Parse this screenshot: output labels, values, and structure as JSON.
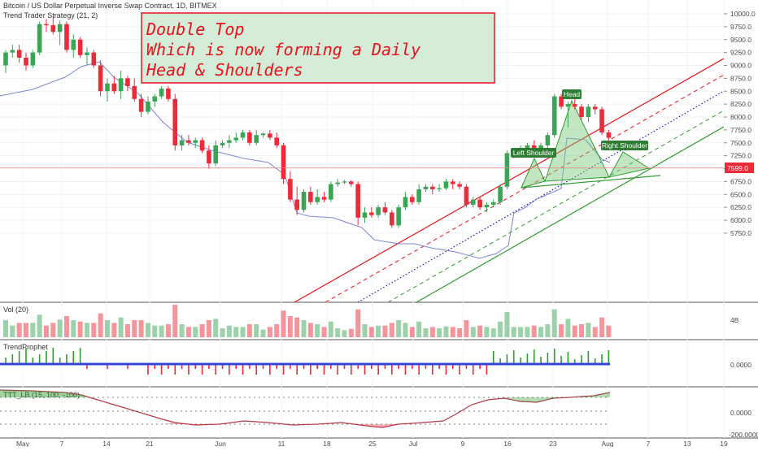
{
  "header": {
    "title": "Bitcoin / US Dollar Perpetual Inverse Swap Contract, 1D, BITMEX",
    "indicator": "Trend Trader Strategy (21, 2)"
  },
  "panels": {
    "volume_label": "Vol (20)",
    "volume_axis_label": "4B",
    "trendprophet_label": "TrendProphet",
    "trendprophet_axis_label": "0.0000",
    "ttt_label": "TTT_LB (15, 100, -100)",
    "ttt_axis_label": "0.0000",
    "ttt_axis_bottom": "-200.0000"
  },
  "annotation": {
    "line1": "Double Top",
    "line2": "Which is now forming a Daily",
    "line3": "Head & Shoulders"
  },
  "pattern_labels": {
    "head": "Head",
    "left_shoulder": "Left Shoulder",
    "right_shoulder": "Right Shoulder"
  },
  "price_axis": {
    "ticks": [
      "10000.0",
      "9750.0",
      "9500.0",
      "9250.0",
      "9000.0",
      "8750.0",
      "8500.0",
      "8250.0",
      "8000.0",
      "7750.0",
      "7500.0",
      "7250.0",
      "7000.0",
      "6750.0",
      "6500.0",
      "6250.0",
      "6000.0",
      "5750.0"
    ],
    "current_price": "7599.0"
  },
  "date_axis": {
    "labels": [
      "May",
      "7",
      "14",
      "21",
      "Jun",
      "11",
      "18",
      "25",
      "Jul",
      "9",
      "16",
      "23",
      "Aug",
      "7",
      "13",
      "19"
    ]
  },
  "colors": {
    "up": "#3aa655",
    "down": "#ee2a38",
    "channel_red": "#e8121b",
    "channel_green": "#2e9e2e",
    "channel_blue": "#1a1aa8",
    "trend_line": "#7b86d4",
    "annotation_bg": "#d4ecd8"
  },
  "chart_data": {
    "type": "candlestick",
    "title": "Bitcoin / US Dollar Perpetual Inverse Swap Contract, 1D, BITMEX",
    "ylim": [
      5500,
      10125
    ],
    "candles": [
      {
        "o": 9000,
        "h": 9300,
        "l": 8850,
        "c": 9250
      },
      {
        "o": 9250,
        "h": 9400,
        "l": 9150,
        "c": 9300
      },
      {
        "o": 9300,
        "h": 9400,
        "l": 9050,
        "c": 9150
      },
      {
        "o": 9150,
        "h": 9250,
        "l": 8900,
        "c": 9000
      },
      {
        "o": 9000,
        "h": 9300,
        "l": 8950,
        "c": 9250
      },
      {
        "o": 9250,
        "h": 9850,
        "l": 9200,
        "c": 9800
      },
      {
        "o": 9800,
        "h": 9900,
        "l": 9650,
        "c": 9780
      },
      {
        "o": 9780,
        "h": 9950,
        "l": 9600,
        "c": 9650
      },
      {
        "o": 9650,
        "h": 9870,
        "l": 9400,
        "c": 9800
      },
      {
        "o": 9800,
        "h": 9850,
        "l": 9250,
        "c": 9300
      },
      {
        "o": 9300,
        "h": 9600,
        "l": 9150,
        "c": 9500
      },
      {
        "o": 9500,
        "h": 9550,
        "l": 9150,
        "c": 9200
      },
      {
        "o": 9200,
        "h": 9350,
        "l": 9000,
        "c": 9250
      },
      {
        "o": 9250,
        "h": 9300,
        "l": 8950,
        "c": 9000
      },
      {
        "o": 9000,
        "h": 9100,
        "l": 8400,
        "c": 8500
      },
      {
        "o": 8500,
        "h": 8750,
        "l": 8300,
        "c": 8650
      },
      {
        "o": 8650,
        "h": 8800,
        "l": 8450,
        "c": 8500
      },
      {
        "o": 8500,
        "h": 8900,
        "l": 8350,
        "c": 8750
      },
      {
        "o": 8750,
        "h": 8800,
        "l": 8500,
        "c": 8600
      },
      {
        "o": 8600,
        "h": 8750,
        "l": 8300,
        "c": 8350
      },
      {
        "o": 8350,
        "h": 8450,
        "l": 8000,
        "c": 8100
      },
      {
        "o": 8100,
        "h": 8400,
        "l": 8050,
        "c": 8300
      },
      {
        "o": 8300,
        "h": 8450,
        "l": 8200,
        "c": 8400
      },
      {
        "o": 8400,
        "h": 8600,
        "l": 8350,
        "c": 8550
      },
      {
        "o": 8550,
        "h": 8600,
        "l": 8300,
        "c": 8350
      },
      {
        "o": 8350,
        "h": 8450,
        "l": 7350,
        "c": 7450
      },
      {
        "o": 7450,
        "h": 7650,
        "l": 7350,
        "c": 7550
      },
      {
        "o": 7550,
        "h": 7650,
        "l": 7450,
        "c": 7500
      },
      {
        "o": 7500,
        "h": 7600,
        "l": 7400,
        "c": 7550
      },
      {
        "o": 7550,
        "h": 7600,
        "l": 7300,
        "c": 7350
      },
      {
        "o": 7350,
        "h": 7450,
        "l": 7000,
        "c": 7100
      },
      {
        "o": 7100,
        "h": 7550,
        "l": 7050,
        "c": 7450
      },
      {
        "o": 7450,
        "h": 7550,
        "l": 7400,
        "c": 7500
      },
      {
        "o": 7500,
        "h": 7650,
        "l": 7400,
        "c": 7550
      },
      {
        "o": 7550,
        "h": 7700,
        "l": 7500,
        "c": 7600
      },
      {
        "o": 7600,
        "h": 7750,
        "l": 7550,
        "c": 7700
      },
      {
        "o": 7700,
        "h": 7750,
        "l": 7450,
        "c": 7500
      },
      {
        "o": 7500,
        "h": 7750,
        "l": 7450,
        "c": 7650
      },
      {
        "o": 7650,
        "h": 7700,
        "l": 7600,
        "c": 7680
      },
      {
        "o": 7680,
        "h": 7750,
        "l": 7550,
        "c": 7600
      },
      {
        "o": 7600,
        "h": 7700,
        "l": 7400,
        "c": 7450
      },
      {
        "o": 7450,
        "h": 7500,
        "l": 6700,
        "c": 6800
      },
      {
        "o": 6800,
        "h": 6950,
        "l": 6350,
        "c": 6400
      },
      {
        "o": 6400,
        "h": 6650,
        "l": 6100,
        "c": 6200
      },
      {
        "o": 6200,
        "h": 6600,
        "l": 6150,
        "c": 6550
      },
      {
        "o": 6550,
        "h": 6650,
        "l": 6300,
        "c": 6350
      },
      {
        "o": 6350,
        "h": 6600,
        "l": 6300,
        "c": 6450
      },
      {
        "o": 6450,
        "h": 6550,
        "l": 6350,
        "c": 6400
      },
      {
        "o": 6400,
        "h": 6750,
        "l": 6350,
        "c": 6700
      },
      {
        "o": 6700,
        "h": 6800,
        "l": 6650,
        "c": 6730
      },
      {
        "o": 6730,
        "h": 6780,
        "l": 6700,
        "c": 6750
      },
      {
        "o": 6750,
        "h": 6780,
        "l": 6650,
        "c": 6700
      },
      {
        "o": 6700,
        "h": 6750,
        "l": 5900,
        "c": 6050
      },
      {
        "o": 6050,
        "h": 6250,
        "l": 5950,
        "c": 6150
      },
      {
        "o": 6150,
        "h": 6250,
        "l": 6050,
        "c": 6100
      },
      {
        "o": 6100,
        "h": 6300,
        "l": 6050,
        "c": 6250
      },
      {
        "o": 6250,
        "h": 6350,
        "l": 6100,
        "c": 6150
      },
      {
        "o": 6150,
        "h": 6200,
        "l": 5850,
        "c": 5900
      },
      {
        "o": 5900,
        "h": 6300,
        "l": 5850,
        "c": 6250
      },
      {
        "o": 6250,
        "h": 6550,
        "l": 6200,
        "c": 6450
      },
      {
        "o": 6450,
        "h": 6500,
        "l": 6300,
        "c": 6350
      },
      {
        "o": 6350,
        "h": 6700,
        "l": 6300,
        "c": 6600
      },
      {
        "o": 6600,
        "h": 6700,
        "l": 6550,
        "c": 6650
      },
      {
        "o": 6650,
        "h": 6700,
        "l": 6500,
        "c": 6600
      },
      {
        "o": 6600,
        "h": 6700,
        "l": 6550,
        "c": 6620
      },
      {
        "o": 6620,
        "h": 6800,
        "l": 6580,
        "c": 6750
      },
      {
        "o": 6750,
        "h": 6800,
        "l": 6600,
        "c": 6700
      },
      {
        "o": 6700,
        "h": 6750,
        "l": 6600,
        "c": 6650
      },
      {
        "o": 6650,
        "h": 6700,
        "l": 6250,
        "c": 6300
      },
      {
        "o": 6300,
        "h": 6450,
        "l": 6250,
        "c": 6400
      },
      {
        "o": 6400,
        "h": 6450,
        "l": 6200,
        "c": 6250
      },
      {
        "o": 6250,
        "h": 6350,
        "l": 6150,
        "c": 6300
      },
      {
        "o": 6300,
        "h": 6400,
        "l": 6250,
        "c": 6350
      },
      {
        "o": 6350,
        "h": 6700,
        "l": 6300,
        "c": 6650
      },
      {
        "o": 6650,
        "h": 7350,
        "l": 6600,
        "c": 7300
      },
      {
        "o": 7300,
        "h": 7400,
        "l": 7200,
        "c": 7350
      },
      {
        "o": 7350,
        "h": 7450,
        "l": 7250,
        "c": 7400
      },
      {
        "o": 7400,
        "h": 7500,
        "l": 7300,
        "c": 7450
      },
      {
        "o": 7450,
        "h": 7550,
        "l": 7300,
        "c": 7350
      },
      {
        "o": 7350,
        "h": 7500,
        "l": 7300,
        "c": 7450
      },
      {
        "o": 7450,
        "h": 7700,
        "l": 7400,
        "c": 7650
      },
      {
        "o": 7650,
        "h": 8450,
        "l": 7600,
        "c": 8400
      },
      {
        "o": 8400,
        "h": 8450,
        "l": 8150,
        "c": 8200
      },
      {
        "o": 8200,
        "h": 8300,
        "l": 7800,
        "c": 8250
      },
      {
        "o": 8250,
        "h": 8400,
        "l": 8150,
        "c": 8200
      },
      {
        "o": 8200,
        "h": 8250,
        "l": 7950,
        "c": 8000
      },
      {
        "o": 8000,
        "h": 8250,
        "l": 7900,
        "c": 8200
      },
      {
        "o": 8200,
        "h": 8250,
        "l": 8050,
        "c": 8150
      },
      {
        "o": 8150,
        "h": 8200,
        "l": 7650,
        "c": 7700
      },
      {
        "o": 7700,
        "h": 7750,
        "l": 7500,
        "c": 7599
      }
    ]
  }
}
